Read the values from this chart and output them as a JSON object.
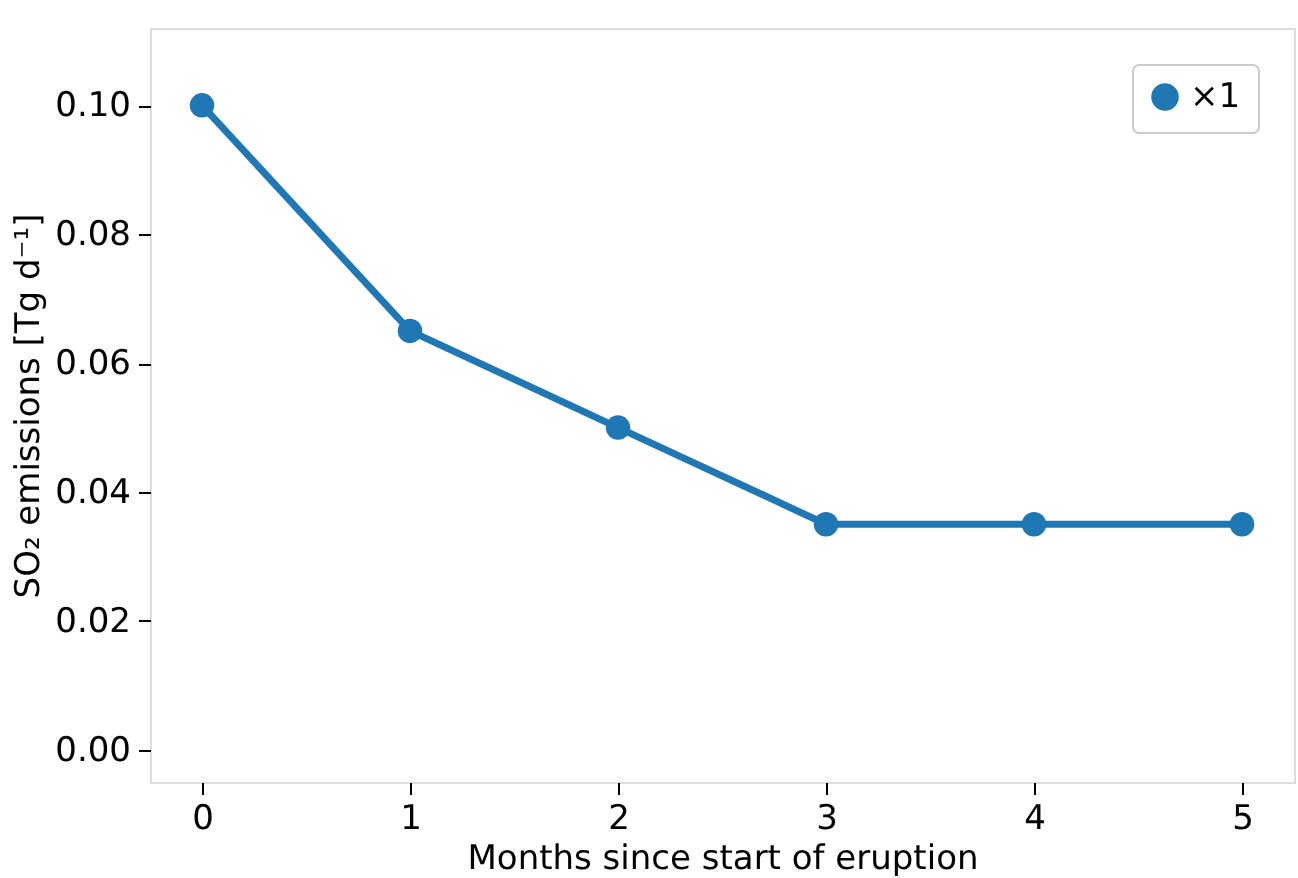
{
  "chart_data": {
    "type": "line",
    "xlabel": "Months since start of eruption",
    "ylabel": "SO₂ emissions [Tg d⁻¹]",
    "x": [
      0,
      1,
      2,
      3,
      4,
      5
    ],
    "series": [
      {
        "name": "×1",
        "color": "#1f77b4",
        "values": [
          0.1,
          0.065,
          0.05,
          0.035,
          0.035,
          0.035
        ]
      }
    ],
    "xlim": [
      -0.25,
      5.25
    ],
    "xticks": [
      0,
      1,
      2,
      3,
      4,
      5
    ],
    "ylim": [
      -0.005,
      0.112
    ],
    "yticks": [
      {
        "value": 0,
        "label": "0.00"
      },
      {
        "value": 0.02,
        "label": "0.02"
      },
      {
        "value": 0.04,
        "label": "0.04"
      },
      {
        "value": 0.06,
        "label": "0.06"
      },
      {
        "value": 0.08,
        "label": "0.08"
      },
      {
        "value": 0.1,
        "label": "0.10"
      }
    ],
    "legend": "top right",
    "marker": "circle",
    "line_style": "solid",
    "grid": false
  }
}
